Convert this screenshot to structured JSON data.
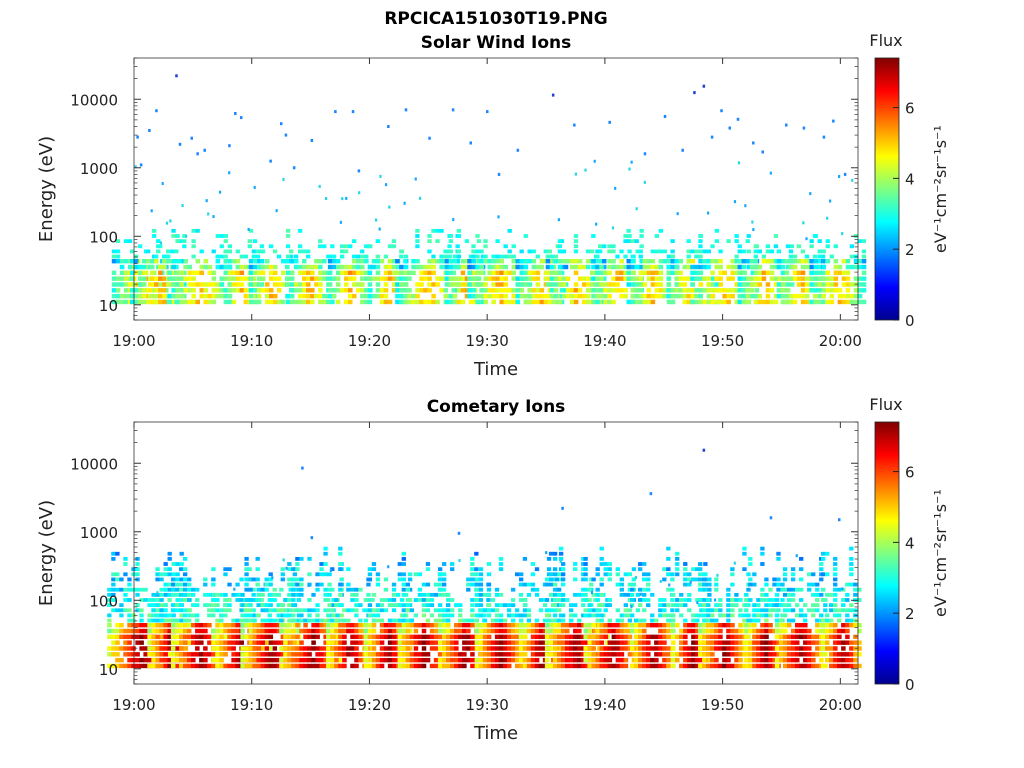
{
  "figure_title": "RPCICA151030T19.PNG",
  "colorbar": {
    "title": "Flux",
    "label_html": "eV⁻¹cm⁻²sr⁻¹s⁻¹",
    "ticks": [
      "0",
      "2",
      "4",
      "6"
    ],
    "range": [
      0,
      7.4
    ],
    "colormap": "jet"
  },
  "chart_data": [
    {
      "type": "heatmap",
      "title": "Solar Wind Ions",
      "xlabel": "Time",
      "ylabel": "Energy (eV)",
      "x_ticks": [
        "19:00",
        "19:10",
        "19:20",
        "19:30",
        "19:40",
        "19:50",
        "20:00"
      ],
      "x_range_minutes": [
        0,
        61.5
      ],
      "y_ticks": [
        "10",
        "100",
        "1000",
        "10000"
      ],
      "y_scale": "log",
      "y_range": [
        6,
        40000
      ],
      "bursts_min": [
        0.5,
        2.0,
        5.5,
        9.0,
        11.5,
        14.8,
        18.2,
        21.5,
        24.8,
        28.0,
        31.0,
        34.5,
        37.5,
        41.0,
        44.0,
        47.3,
        50.0,
        53.5,
        56.5,
        59.7
      ],
      "sparse_hits": [
        {
          "t": 0.2,
          "e": 2800
        },
        {
          "t": 0.5,
          "e": 1100
        },
        {
          "t": 1.2,
          "e": 3500
        },
        {
          "t": 1.8,
          "e": 6800
        },
        {
          "t": 3.5,
          "e": 22000
        },
        {
          "t": 3.8,
          "e": 2200
        },
        {
          "t": 4.8,
          "e": 2700
        },
        {
          "t": 5.3,
          "e": 1600
        },
        {
          "t": 5.9,
          "e": 1800
        },
        {
          "t": 8.0,
          "e": 2100
        },
        {
          "t": 8.5,
          "e": 6200
        },
        {
          "t": 9.0,
          "e": 5400
        },
        {
          "t": 11.5,
          "e": 1250
        },
        {
          "t": 12.4,
          "e": 4400
        },
        {
          "t": 12.8,
          "e": 3000
        },
        {
          "t": 13.5,
          "e": 1000
        },
        {
          "t": 15.0,
          "e": 2500
        },
        {
          "t": 17.0,
          "e": 6600
        },
        {
          "t": 18.5,
          "e": 6600
        },
        {
          "t": 19.0,
          "e": 900
        },
        {
          "t": 21.5,
          "e": 4000
        },
        {
          "t": 23.0,
          "e": 7000
        },
        {
          "t": 25.0,
          "e": 2700
        },
        {
          "t": 27.0,
          "e": 7000
        },
        {
          "t": 28.5,
          "e": 2300
        },
        {
          "t": 29.9,
          "e": 6600
        },
        {
          "t": 30.9,
          "e": 800
        },
        {
          "t": 32.5,
          "e": 1800
        },
        {
          "t": 35.5,
          "e": 11500
        },
        {
          "t": 37.3,
          "e": 4200
        },
        {
          "t": 40.3,
          "e": 4600
        },
        {
          "t": 43.3,
          "e": 1600
        },
        {
          "t": 45.0,
          "e": 5600
        },
        {
          "t": 46.5,
          "e": 1800
        },
        {
          "t": 47.5,
          "e": 12500
        },
        {
          "t": 48.3,
          "e": 15500
        },
        {
          "t": 49.0,
          "e": 2800
        },
        {
          "t": 49.8,
          "e": 6800
        },
        {
          "t": 50.5,
          "e": 3800
        },
        {
          "t": 51.2,
          "e": 5100
        },
        {
          "t": 52.5,
          "e": 2300
        },
        {
          "t": 53.3,
          "e": 1700
        },
        {
          "t": 55.3,
          "e": 4200
        },
        {
          "t": 56.8,
          "e": 3800
        },
        {
          "t": 58.5,
          "e": 2800
        },
        {
          "t": 59.3,
          "e": 4800
        },
        {
          "t": 60.3,
          "e": 800
        }
      ]
    },
    {
      "type": "heatmap",
      "title": "Cometary Ions",
      "xlabel": "Time",
      "ylabel": "Energy (eV)",
      "x_ticks": [
        "19:00",
        "19:10",
        "19:20",
        "19:30",
        "19:40",
        "19:50",
        "20:00"
      ],
      "x_range_minutes": [
        0,
        61.5
      ],
      "y_ticks": [
        "10",
        "100",
        "1000",
        "10000"
      ],
      "y_scale": "log",
      "y_range": [
        6,
        40000
      ],
      "bursts_min": [
        0.5,
        3.0,
        5.5,
        9.0,
        11.5,
        15.0,
        18.2,
        21.5,
        24.5,
        28.0,
        31.0,
        34.5,
        37.5,
        40.5,
        44.0,
        47.3,
        50.0,
        53.5,
        56.5,
        60.0
      ],
      "sparse_hits": [
        {
          "t": 14.2,
          "e": 8500
        },
        {
          "t": 15.0,
          "e": 820
        },
        {
          "t": 27.5,
          "e": 950
        },
        {
          "t": 36.3,
          "e": 2200
        },
        {
          "t": 43.8,
          "e": 3600
        },
        {
          "t": 48.3,
          "e": 15500
        },
        {
          "t": 54.0,
          "e": 1600
        },
        {
          "t": 59.8,
          "e": 1500
        }
      ]
    }
  ]
}
